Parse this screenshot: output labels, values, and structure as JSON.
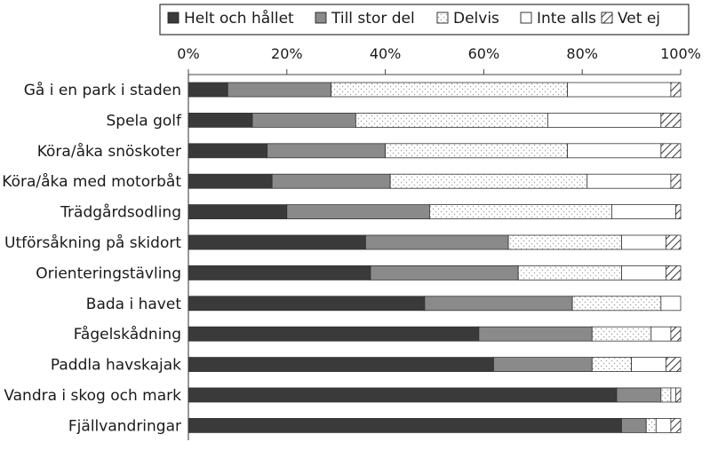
{
  "chart_data": {
    "type": "bar",
    "orientation": "horizontal",
    "stacked": true,
    "categories": [
      "Gå i en park i staden",
      "Spela golf",
      "Köra/åka snöskoter",
      "Köra/åka med motorbåt",
      "Trädgårdsodling",
      "Utförsåkning på skidort",
      "Orienteringstävling",
      "Bada i havet",
      "Fågelskådning",
      "Paddla havskajak",
      "Vandra i skog och mark",
      "Fjällvandringar"
    ],
    "series": [
      {
        "name": "Helt och hållet",
        "values": [
          8,
          13,
          16,
          17,
          20,
          36,
          37,
          48,
          59,
          62,
          87,
          88
        ],
        "color": "#3a3a3a",
        "pattern": "solid"
      },
      {
        "name": "Till stor del",
        "values": [
          21,
          21,
          24,
          24,
          29,
          29,
          30,
          30,
          23,
          20,
          9,
          5
        ],
        "color": "#8a8a8a",
        "pattern": "solid"
      },
      {
        "name": "Delvis",
        "values": [
          48,
          39,
          37,
          40,
          37,
          23,
          21,
          18,
          12,
          8,
          2,
          2
        ],
        "color": "#ffffff",
        "pattern": "dots"
      },
      {
        "name": "Inte alls",
        "values": [
          21,
          23,
          19,
          17,
          13,
          9,
          9,
          4,
          4,
          7,
          1,
          3
        ],
        "color": "#ffffff",
        "pattern": "none"
      },
      {
        "name": "Vet ej",
        "values": [
          2,
          4,
          4,
          2,
          1,
          3,
          3,
          0,
          2,
          3,
          1,
          2
        ],
        "color": "#ffffff",
        "pattern": "hatch"
      }
    ],
    "xaxis": {
      "min": 0,
      "max": 100,
      "ticks": [
        0,
        20,
        40,
        60,
        80,
        100
      ],
      "tick_labels": [
        "0%",
        "20%",
        "40%",
        "60%",
        "80%",
        "100%"
      ],
      "position": "top"
    },
    "legend": {
      "placement": "top"
    },
    "grid": false
  }
}
